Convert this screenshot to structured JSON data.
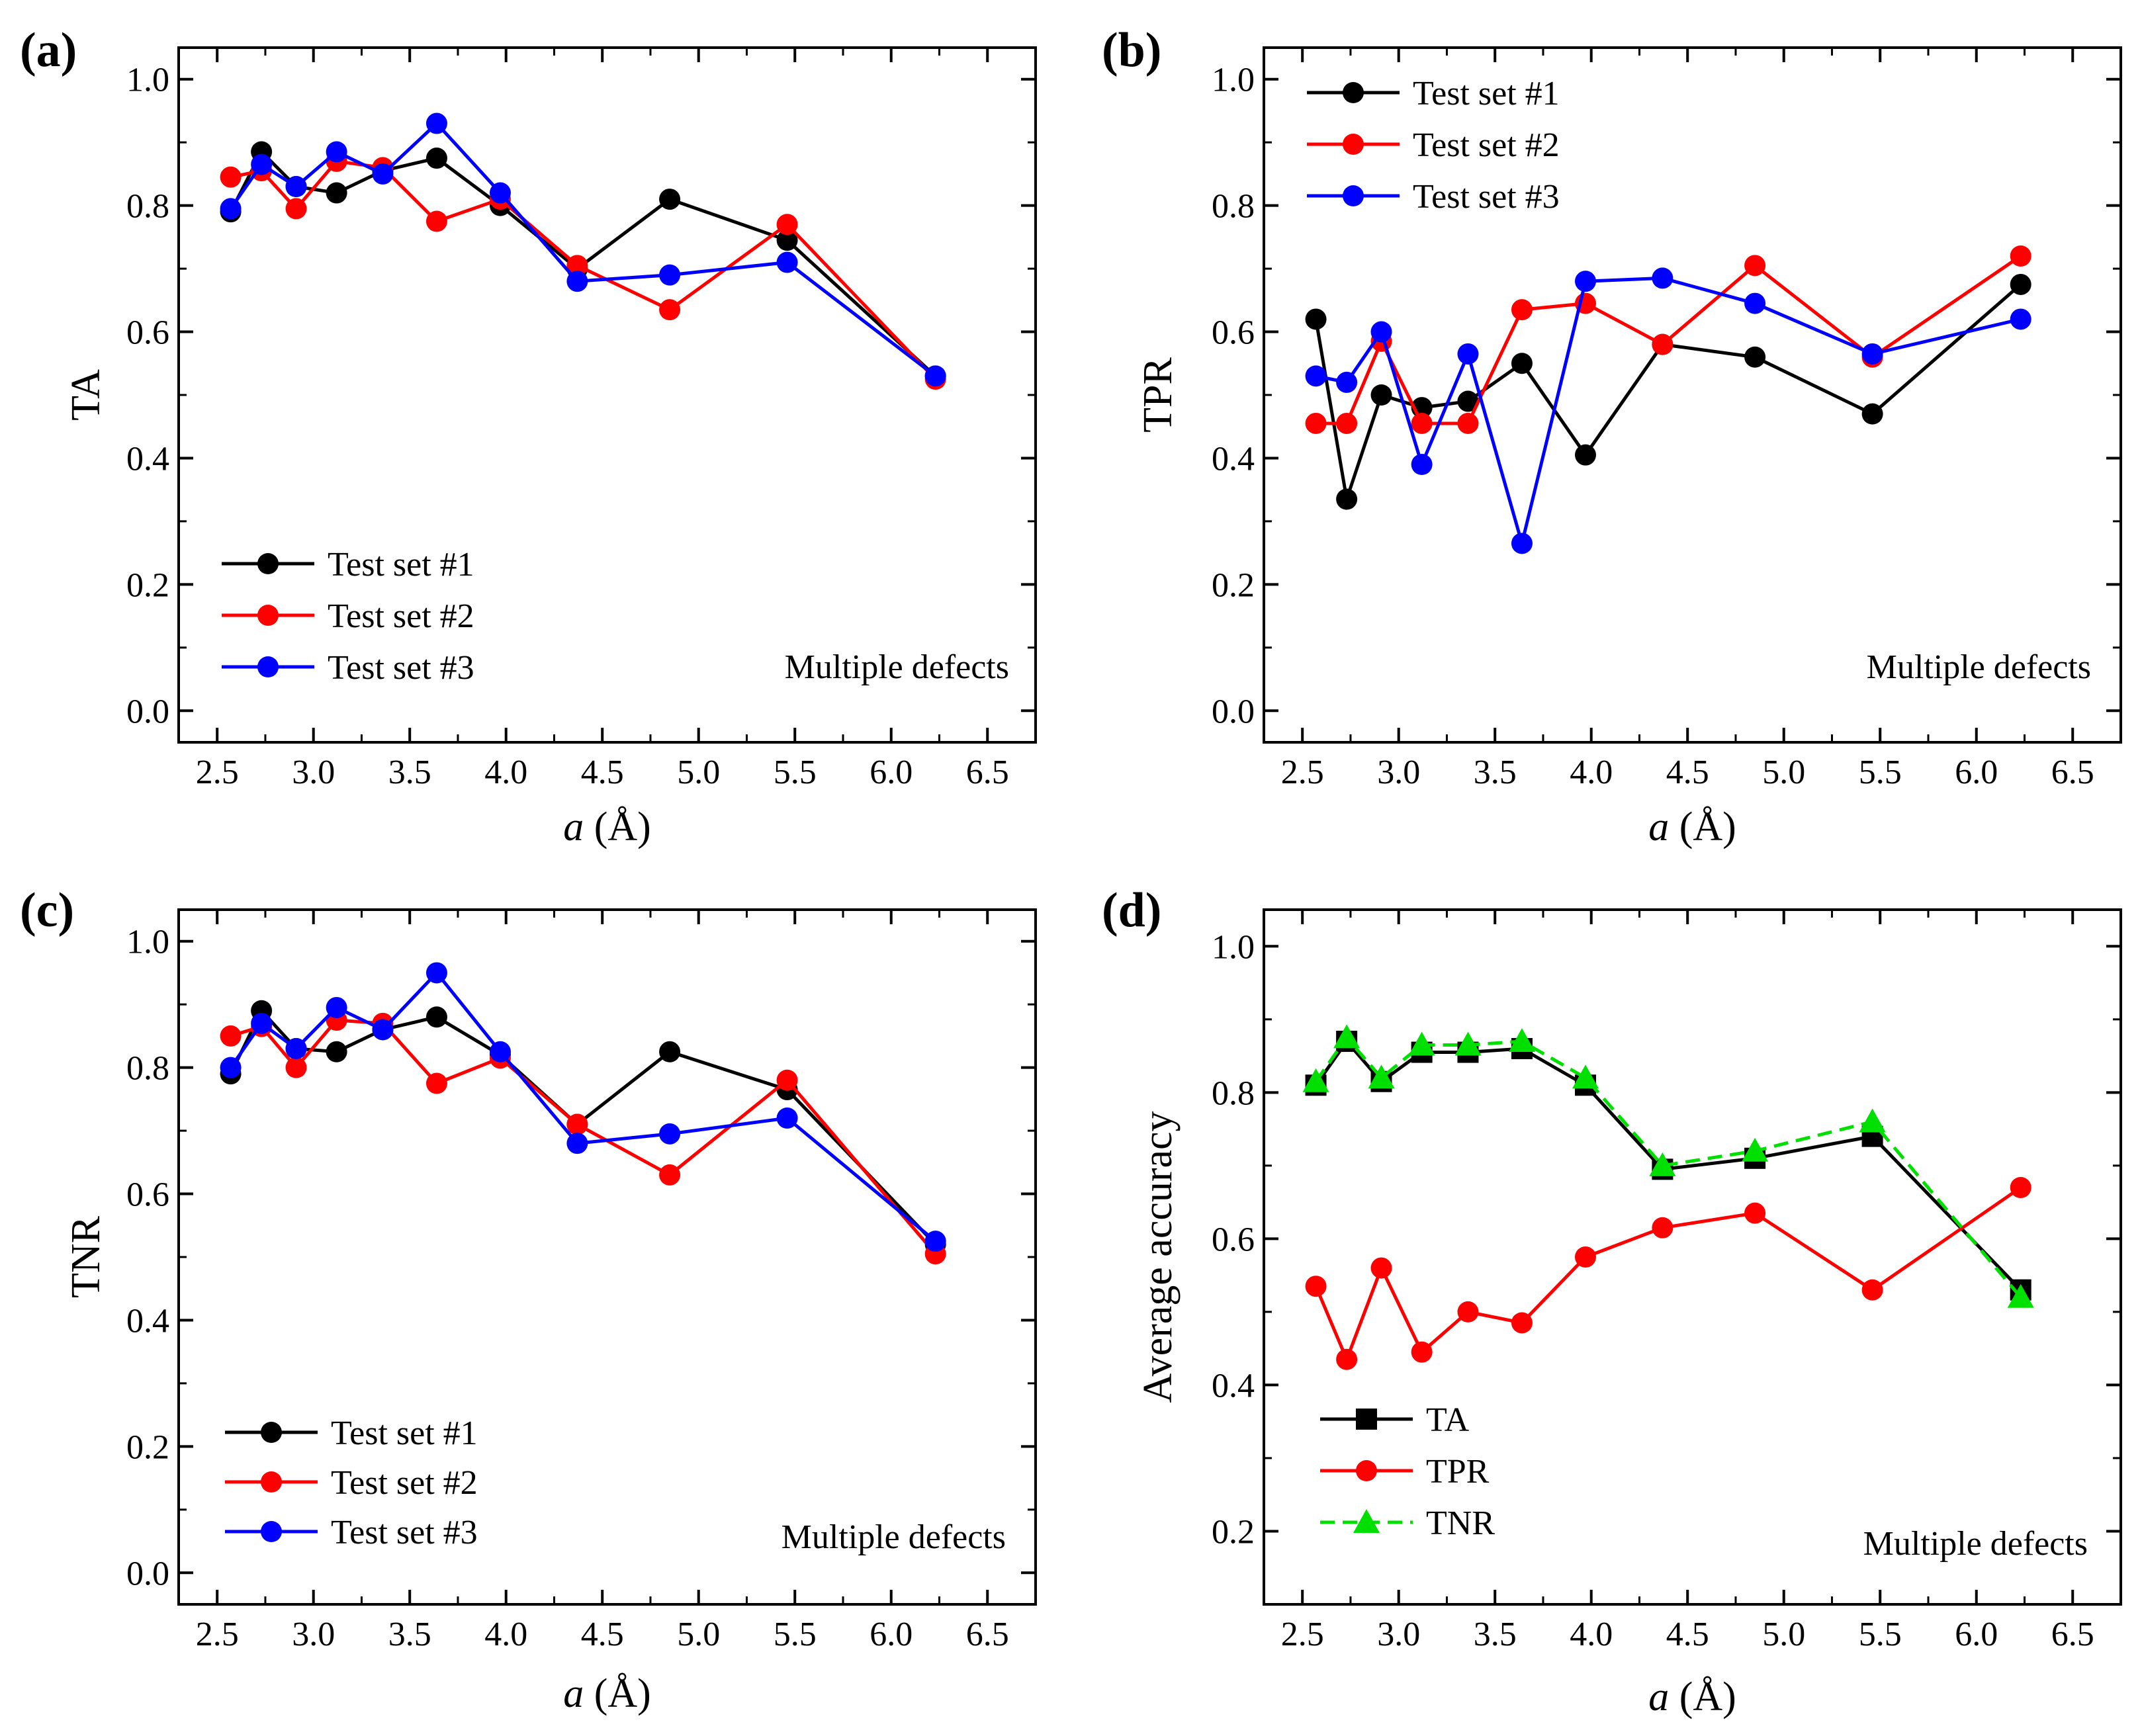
{
  "chart_data": [
    {
      "panel": "(a)",
      "type": "line",
      "ylabel": "TA",
      "xlabel_var": "a",
      "xlabel_unit": " (Å)",
      "xlim": [
        2.3,
        6.75
      ],
      "ylim": [
        -0.05,
        1.05
      ],
      "xticks": [
        "2.5",
        "3.0",
        "3.5",
        "4.0",
        "4.5",
        "5.0",
        "5.5",
        "6.0",
        "6.5"
      ],
      "yticks": [
        "0.0",
        "0.2",
        "0.4",
        "0.6",
        "0.8",
        "1.0"
      ],
      "annotation": "Multiple defects",
      "legend_position": "bottom-left",
      "x": [
        2.57,
        2.73,
        2.91,
        3.12,
        3.36,
        3.64,
        3.97,
        4.37,
        4.85,
        5.46,
        6.23
      ],
      "series": [
        {
          "name": "Test set #1",
          "color": "#000000",
          "marker": "circle",
          "dash": false,
          "values": [
            0.79,
            0.885,
            0.83,
            0.82,
            0.855,
            0.875,
            0.8,
            0.7,
            0.81,
            0.745,
            0.53
          ]
        },
        {
          "name": "Test set #2",
          "color": "#ff0000",
          "marker": "circle",
          "dash": false,
          "values": [
            0.845,
            0.855,
            0.795,
            0.87,
            0.86,
            0.775,
            0.81,
            0.705,
            0.635,
            0.77,
            0.525
          ]
        },
        {
          "name": "Test set #3",
          "color": "#0000ff",
          "marker": "circle",
          "dash": false,
          "values": [
            0.795,
            0.865,
            0.83,
            0.885,
            0.85,
            0.93,
            0.82,
            0.68,
            0.69,
            0.71,
            0.53
          ]
        }
      ]
    },
    {
      "panel": "(b)",
      "type": "line",
      "ylabel": "TPR",
      "xlabel_var": "a",
      "xlabel_unit": " (Å)",
      "xlim": [
        2.3,
        6.75
      ],
      "ylim": [
        -0.05,
        1.05
      ],
      "xticks": [
        "2.5",
        "3.0",
        "3.5",
        "4.0",
        "4.5",
        "5.0",
        "5.5",
        "6.0",
        "6.5"
      ],
      "yticks": [
        "0.0",
        "0.2",
        "0.4",
        "0.6",
        "0.8",
        "1.0"
      ],
      "annotation": "Multiple defects",
      "legend_position": "top-left",
      "x": [
        2.57,
        2.73,
        2.91,
        3.12,
        3.36,
        3.64,
        3.97,
        4.37,
        4.85,
        5.46,
        6.23
      ],
      "series": [
        {
          "name": "Test set #1",
          "color": "#000000",
          "marker": "circle",
          "dash": false,
          "values": [
            0.62,
            0.335,
            0.5,
            0.48,
            0.49,
            0.55,
            0.405,
            0.58,
            0.56,
            0.47,
            0.675
          ]
        },
        {
          "name": "Test set #2",
          "color": "#ff0000",
          "marker": "circle",
          "dash": false,
          "values": [
            0.455,
            0.455,
            0.585,
            0.455,
            0.455,
            0.635,
            0.645,
            0.58,
            0.705,
            0.56,
            0.72
          ]
        },
        {
          "name": "Test set #3",
          "color": "#0000ff",
          "marker": "circle",
          "dash": false,
          "values": [
            0.53,
            0.52,
            0.6,
            0.39,
            0.565,
            0.265,
            0.68,
            0.685,
            0.645,
            0.565,
            0.62
          ]
        }
      ]
    },
    {
      "panel": "(c)",
      "type": "line",
      "ylabel": "TNR",
      "xlabel_var": "a",
      "xlabel_unit": " (Å)",
      "xlim": [
        2.3,
        6.75
      ],
      "ylim": [
        -0.05,
        1.05
      ],
      "xticks": [
        "2.5",
        "3.0",
        "3.5",
        "4.0",
        "4.5",
        "5.0",
        "5.5",
        "6.0",
        "6.5"
      ],
      "yticks": [
        "0.0",
        "0.2",
        "0.4",
        "0.6",
        "0.8",
        "1.0"
      ],
      "annotation": "Multiple defects",
      "legend_position": "bottom-left",
      "x": [
        2.57,
        2.73,
        2.91,
        3.12,
        3.36,
        3.64,
        3.97,
        4.37,
        4.85,
        5.46,
        6.23
      ],
      "series": [
        {
          "name": "Test set #1",
          "color": "#000000",
          "marker": "circle",
          "dash": false,
          "values": [
            0.79,
            0.89,
            0.83,
            0.825,
            0.86,
            0.88,
            0.82,
            0.71,
            0.825,
            0.765,
            0.52
          ]
        },
        {
          "name": "Test set #2",
          "color": "#ff0000",
          "marker": "circle",
          "dash": false,
          "values": [
            0.85,
            0.865,
            0.8,
            0.875,
            0.87,
            0.775,
            0.815,
            0.71,
            0.63,
            0.78,
            0.505
          ]
        },
        {
          "name": "Test set #3",
          "color": "#0000ff",
          "marker": "circle",
          "dash": false,
          "values": [
            0.8,
            0.87,
            0.83,
            0.895,
            0.86,
            0.95,
            0.825,
            0.68,
            0.695,
            0.72,
            0.525
          ]
        }
      ]
    },
    {
      "panel": "(d)",
      "type": "line",
      "ylabel": "Average accuracy",
      "xlabel_var": "a",
      "xlabel_unit": " (Å)",
      "xlim": [
        2.3,
        6.75
      ],
      "ylim": [
        0.1,
        1.05
      ],
      "xticks": [
        "2.5",
        "3.0",
        "3.5",
        "4.0",
        "4.5",
        "5.0",
        "5.5",
        "6.0",
        "6.5"
      ],
      "yticks": [
        "0.2",
        "0.4",
        "0.6",
        "0.8",
        "1.0"
      ],
      "annotation": "Multiple defects",
      "legend_position": "bottom-left",
      "x": [
        2.57,
        2.73,
        2.91,
        3.12,
        3.36,
        3.64,
        3.97,
        4.37,
        4.85,
        5.46,
        6.23
      ],
      "series": [
        {
          "name": "TA",
          "color": "#000000",
          "marker": "square",
          "dash": false,
          "values": [
            0.81,
            0.87,
            0.815,
            0.855,
            0.855,
            0.86,
            0.81,
            0.695,
            0.71,
            0.74,
            0.53
          ]
        },
        {
          "name": "TPR",
          "color": "#ff0000",
          "marker": "circle",
          "dash": false,
          "values": [
            0.535,
            0.435,
            0.56,
            0.445,
            0.5,
            0.485,
            0.575,
            0.615,
            0.635,
            0.53,
            0.67
          ]
        },
        {
          "name": "TNR",
          "color": "#00e000",
          "marker": "triangle",
          "dash": true,
          "values": [
            0.815,
            0.875,
            0.82,
            0.865,
            0.865,
            0.87,
            0.82,
            0.7,
            0.72,
            0.76,
            0.52
          ]
        }
      ]
    }
  ]
}
